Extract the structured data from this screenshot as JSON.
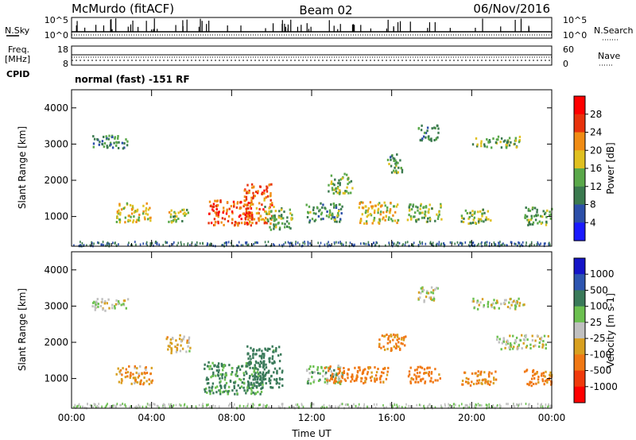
{
  "header": {
    "site": "McMurdo (fitACF)",
    "beam": "Beam 02",
    "date": "06/Nov/2016"
  },
  "param_panels": {
    "noise": {
      "left_label": "N.Sky",
      "right_label": "N.Search",
      "left_ticks": [
        "10^5",
        "10^0"
      ],
      "right_ticks": [
        "10^5",
        "10^0"
      ]
    },
    "freq": {
      "left_label": "Freq.",
      "left_unit": "[MHz]",
      "right_label": "Nave",
      "left_ticks": [
        "18",
        "8"
      ],
      "right_ticks": [
        "60",
        "0"
      ]
    },
    "cpid": {
      "label": "CPID",
      "text": "normal (fast) -151 RF"
    }
  },
  "colors": {
    "power_scale": [
      "#1a1aff",
      "#2c4fa8",
      "#3b7a4f",
      "#5aa84a",
      "#e0c020",
      "#f08c14",
      "#e8320c",
      "#ff0000"
    ],
    "velocity_scale": [
      "#1515c8",
      "#2d55b0",
      "#3a7a5a",
      "#6cc050",
      "#c0c0c0",
      "#d8a020",
      "#f07814",
      "#f03a0c",
      "#ff0000"
    ]
  },
  "chart_data": [
    {
      "type": "heatmap",
      "title": "Power",
      "xlabel": "",
      "ylabel": "Slant Range [km]",
      "xlim": [
        "00:00",
        "00:00"
      ],
      "ylim": [
        180,
        4500
      ],
      "x_ticks": [
        "00:00",
        "04:00",
        "08:00",
        "12:00",
        "16:00",
        "20:00",
        "00:00"
      ],
      "y_ticks": [
        1000,
        2000,
        3000,
        4000
      ],
      "colorbar": {
        "label": "Power [dB]",
        "ticks": [
          4,
          8,
          12,
          16,
          20,
          24,
          28
        ]
      },
      "regions": [
        {
          "t": 1.9,
          "r": 3050,
          "dt": 0.9,
          "dr": 180,
          "v": 11
        },
        {
          "t": 3.1,
          "r": 1100,
          "dt": 0.9,
          "dr": 260,
          "v": 18
        },
        {
          "t": 5.3,
          "r": 1000,
          "dt": 0.5,
          "dr": 200,
          "v": 16
        },
        {
          "t": 7.9,
          "r": 1100,
          "dt": 1.1,
          "dr": 350,
          "v": 25
        },
        {
          "t": 9.3,
          "r": 1350,
          "dt": 0.7,
          "dr": 550,
          "v": 24
        },
        {
          "t": 10.3,
          "r": 950,
          "dt": 0.7,
          "dr": 320,
          "v": 14
        },
        {
          "t": 12.6,
          "r": 1100,
          "dt": 0.9,
          "dr": 260,
          "v": 12
        },
        {
          "t": 13.4,
          "r": 1900,
          "dt": 0.6,
          "dr": 280,
          "v": 15
        },
        {
          "t": 15.3,
          "r": 1100,
          "dt": 1.0,
          "dr": 300,
          "v": 18
        },
        {
          "t": 16.1,
          "r": 2450,
          "dt": 0.4,
          "dr": 260,
          "v": 12
        },
        {
          "t": 17.6,
          "r": 1100,
          "dt": 0.9,
          "dr": 250,
          "v": 14
        },
        {
          "t": 17.8,
          "r": 3300,
          "dt": 0.5,
          "dr": 220,
          "v": 11
        },
        {
          "t": 20.2,
          "r": 1000,
          "dt": 0.8,
          "dr": 200,
          "v": 15
        },
        {
          "t": 21.2,
          "r": 3050,
          "dt": 1.2,
          "dr": 160,
          "v": 13
        },
        {
          "t": 23.3,
          "r": 1000,
          "dt": 0.7,
          "dr": 250,
          "v": 13
        }
      ]
    },
    {
      "type": "heatmap",
      "title": "Velocity",
      "xlabel": "Time UT",
      "ylabel": "Slant Range [km]",
      "xlim": [
        "00:00",
        "00:00"
      ],
      "ylim": [
        180,
        4500
      ],
      "x_ticks": [
        "00:00",
        "04:00",
        "08:00",
        "12:00",
        "16:00",
        "20:00",
        "00:00"
      ],
      "y_ticks": [
        1000,
        2000,
        3000,
        4000
      ],
      "colorbar": {
        "label": "Velocity [m s-1]",
        "ticks": [
          1000,
          500,
          100,
          25,
          -25,
          -100,
          -500,
          -1000
        ]
      },
      "regions": [
        {
          "t": 1.9,
          "r": 3050,
          "dt": 0.9,
          "dr": 180,
          "v": 0
        },
        {
          "t": 3.1,
          "r": 1100,
          "dt": 0.9,
          "dr": 260,
          "v": -80
        },
        {
          "t": 5.3,
          "r": 1950,
          "dt": 0.6,
          "dr": 250,
          "v": -40
        },
        {
          "t": 8.1,
          "r": 1000,
          "dt": 1.5,
          "dr": 450,
          "v": 120
        },
        {
          "t": 9.6,
          "r": 1300,
          "dt": 0.9,
          "dr": 600,
          "v": 160
        },
        {
          "t": 12.6,
          "r": 1100,
          "dt": 0.9,
          "dr": 260,
          "v": 60
        },
        {
          "t": 14.2,
          "r": 1100,
          "dt": 1.6,
          "dr": 230,
          "v": -150
        },
        {
          "t": 16.0,
          "r": 2000,
          "dt": 0.7,
          "dr": 250,
          "v": -120
        },
        {
          "t": 17.6,
          "r": 1100,
          "dt": 0.8,
          "dr": 230,
          "v": -150
        },
        {
          "t": 17.8,
          "r": 3300,
          "dt": 0.5,
          "dr": 220,
          "v": 0
        },
        {
          "t": 20.3,
          "r": 1000,
          "dt": 0.9,
          "dr": 200,
          "v": -120
        },
        {
          "t": 21.3,
          "r": 3050,
          "dt": 1.3,
          "dr": 160,
          "v": 0
        },
        {
          "t": 22.5,
          "r": 2000,
          "dt": 1.3,
          "dr": 200,
          "v": 0
        },
        {
          "t": 23.3,
          "r": 1000,
          "dt": 0.7,
          "dr": 250,
          "v": -150
        }
      ]
    }
  ]
}
